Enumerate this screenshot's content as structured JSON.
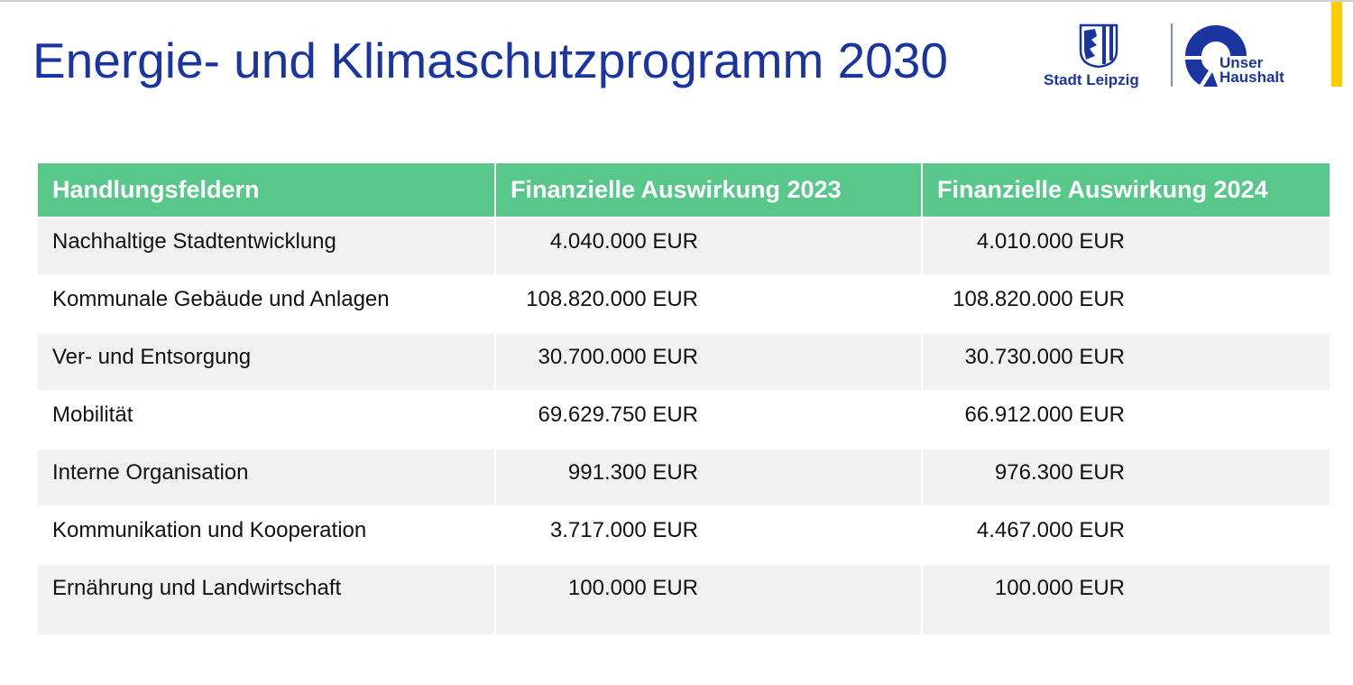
{
  "title": "Energie- und Klimaschutzprogramm 2030",
  "logos": {
    "stadt": "Stadt Leipzig",
    "unser": "Unser",
    "haushalt": "Haushalt"
  },
  "colors": {
    "title": "#1a35a0",
    "header": "#57c78a",
    "accent": "#ffcc00"
  },
  "table": {
    "headers": [
      "Handlungsfeldern",
      "Finanzielle Auswirkung 2023",
      "Finanzielle Auswirkung 2024"
    ],
    "rows": [
      [
        "Nachhaltige Stadtentwicklung",
        "4.040.000 EUR",
        "4.010.000 EUR"
      ],
      [
        "Kommunale Gebäude und Anlagen",
        "108.820.000 EUR",
        "108.820.000 EUR"
      ],
      [
        "Ver- und Entsorgung",
        "30.700.000 EUR",
        "30.730.000 EUR"
      ],
      [
        "Mobilität",
        "69.629.750 EUR",
        "66.912.000 EUR"
      ],
      [
        "Interne Organisation",
        "991.300 EUR",
        "976.300 EUR"
      ],
      [
        "Kommunikation und Kooperation",
        "3.717.000 EUR",
        "4.467.000 EUR"
      ],
      [
        "Ernährung und Landwirtschaft",
        "100.000 EUR",
        "100.000 EUR"
      ]
    ]
  }
}
